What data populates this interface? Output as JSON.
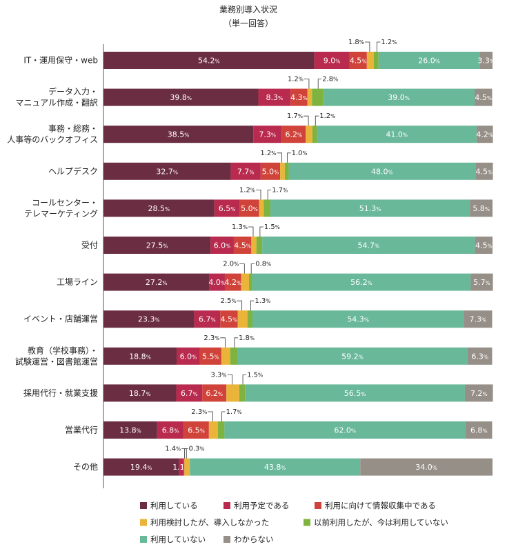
{
  "chart_data": {
    "type": "bar",
    "orientation": "horizontal",
    "stacked": true,
    "percent_suffix": "%",
    "title": "業務別導入状況",
    "subtitle": "（単一回答）",
    "xlim": [
      0,
      100
    ],
    "categories": [
      [
        "IT・運用保守・web"
      ],
      [
        "データ入力・",
        "マニュアル作成・翻訳"
      ],
      [
        "事務・総務・",
        "人事等のバックオフィス"
      ],
      [
        "ヘルプデスク"
      ],
      [
        "コールセンター・",
        "テレマーケティング"
      ],
      [
        "受付"
      ],
      [
        "工場ライン"
      ],
      [
        "イベント・店舗運営"
      ],
      [
        "教育（学校事務）・",
        "試験運営・図書館運営"
      ],
      [
        "採用代行・就業支援"
      ],
      [
        "営業代行"
      ],
      [
        "その他"
      ]
    ],
    "series": [
      {
        "name": "利用している",
        "color": "#6b2d42",
        "label_color": "#ffffff",
        "values": [
          54.2,
          39.8,
          38.5,
          32.7,
          28.5,
          27.5,
          27.2,
          23.3,
          18.8,
          18.7,
          13.8,
          19.4
        ]
      },
      {
        "name": "利用予定である",
        "color": "#b82a4e",
        "label_color": "#ffffff",
        "values": [
          9.0,
          8.3,
          7.3,
          7.7,
          6.5,
          6.0,
          4.0,
          6.7,
          6.0,
          6.7,
          6.8,
          1.1
        ]
      },
      {
        "name": "利用に向けて情報収集中である",
        "color": "#d0433a",
        "label_color": "#ffffff",
        "values": [
          4.5,
          4.3,
          6.2,
          5.0,
          5.0,
          4.5,
          4.2,
          4.5,
          5.5,
          6.2,
          6.5,
          0.3
        ]
      },
      {
        "name": "利用検討したが、導入しなかった",
        "color": "#eab43a",
        "label_color": "#222222",
        "values": [
          1.8,
          1.2,
          1.7,
          1.2,
          1.2,
          1.3,
          2.0,
          2.5,
          2.3,
          3.3,
          2.3,
          1.4
        ]
      },
      {
        "name": "以前利用したが、今は利用していない",
        "color": "#7db33e",
        "label_color": "#222222",
        "values": [
          1.2,
          2.8,
          1.2,
          1.0,
          1.7,
          1.5,
          0.8,
          1.3,
          1.8,
          1.5,
          1.7,
          0.0
        ]
      },
      {
        "name": "利用していない",
        "color": "#69b89a",
        "label_color": "#ffffff",
        "values": [
          26.0,
          39.0,
          41.0,
          48.0,
          51.3,
          54.7,
          56.2,
          54.3,
          59.2,
          56.5,
          62.0,
          43.8
        ]
      },
      {
        "name": "わからない",
        "color": "#968f87",
        "label_color": "#ffffff",
        "values": [
          3.3,
          4.5,
          4.2,
          4.5,
          5.8,
          4.5,
          5.7,
          7.3,
          6.3,
          7.2,
          6.8,
          34.0
        ]
      }
    ],
    "callouts": [
      {
        "row": 0,
        "left": {
          "series": 3,
          "text": "1.8"
        },
        "right": {
          "series": 4,
          "text": "1.2"
        }
      },
      {
        "row": 1,
        "left": {
          "series": 3,
          "text": "1.2"
        },
        "right": {
          "series": 4,
          "text": "2.8"
        }
      },
      {
        "row": 2,
        "left": {
          "series": 3,
          "text": "1.7"
        },
        "right": {
          "series": 4,
          "text": "1.2"
        }
      },
      {
        "row": 3,
        "left": {
          "series": 3,
          "text": "1.2"
        },
        "right": {
          "series": 4,
          "text": "1.0"
        }
      },
      {
        "row": 4,
        "left": {
          "series": 3,
          "text": "1.2"
        },
        "right": {
          "series": 4,
          "text": "1.7"
        }
      },
      {
        "row": 5,
        "left": {
          "series": 3,
          "text": "1.3"
        },
        "right": {
          "series": 4,
          "text": "1.5"
        }
      },
      {
        "row": 6,
        "left": {
          "series": 3,
          "text": "2.0"
        },
        "right": {
          "series": 4,
          "text": "0.8"
        }
      },
      {
        "row": 7,
        "left": {
          "series": 3,
          "text": "2.5"
        },
        "right": {
          "series": 4,
          "text": "1.3"
        }
      },
      {
        "row": 8,
        "left": {
          "series": 3,
          "text": "2.3"
        },
        "right": {
          "series": 4,
          "text": "1.8"
        }
      },
      {
        "row": 9,
        "left": {
          "series": 3,
          "text": "3.3"
        },
        "right": {
          "series": 4,
          "text": "1.5"
        }
      },
      {
        "row": 10,
        "left": {
          "series": 3,
          "text": "2.3"
        },
        "right": {
          "series": 4,
          "text": "1.7"
        }
      },
      {
        "row": 11,
        "left": {
          "series": 3,
          "text": "1.4"
        },
        "right": {
          "series": 2,
          "text": "0.3"
        }
      }
    ],
    "inline_labels": [
      [
        "54.2",
        "9.0",
        "4.5",
        null,
        null,
        "26.0",
        "3.3"
      ],
      [
        "39.8",
        "8.3",
        "4.3",
        null,
        null,
        "39.0",
        "4.5"
      ],
      [
        "38.5",
        "7.3",
        "6.2",
        null,
        null,
        "41.0",
        "4.2"
      ],
      [
        "32.7",
        "7.7",
        "5.0",
        null,
        null,
        "48.0",
        "4.5"
      ],
      [
        "28.5",
        "6.5",
        "5.0",
        null,
        null,
        "51.3",
        "5.8"
      ],
      [
        "27.5",
        "6.0",
        "4.5",
        null,
        null,
        "54.7",
        "4.5"
      ],
      [
        "27.2",
        "4.0",
        "4.2",
        null,
        null,
        "56.2",
        "5.7"
      ],
      [
        "23.3",
        "6.7",
        "4.5",
        null,
        null,
        "54.3",
        "7.3"
      ],
      [
        "18.8",
        "6.0",
        "5.5",
        null,
        null,
        "59.2",
        "6.3"
      ],
      [
        "18.7",
        "6.7",
        "6.2",
        null,
        null,
        "56.5",
        "7.2"
      ],
      [
        "13.8",
        "6.8",
        "6.5",
        null,
        null,
        "62.0",
        "6.8"
      ],
      [
        "19.4",
        "1.1",
        null,
        null,
        null,
        "43.8",
        "34.0"
      ]
    ],
    "legend": {
      "position": "bottom",
      "rows": [
        [
          0,
          1,
          2
        ],
        [
          3,
          4
        ],
        [
          5,
          6
        ]
      ]
    }
  }
}
